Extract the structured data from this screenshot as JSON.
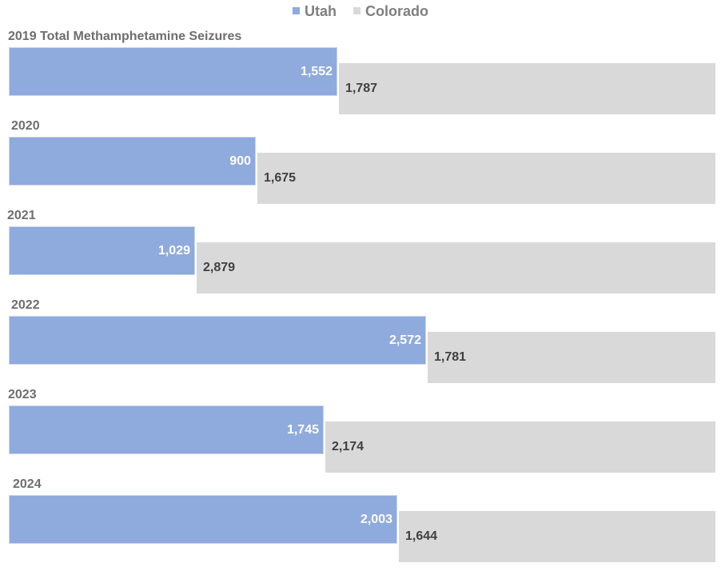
{
  "chart_data": {
    "type": "bar",
    "orientation": "horizontal",
    "stacking": "percent",
    "categories": [
      "2019 Total Methamphetamine Seizures",
      "2020",
      "2021",
      "2022",
      "2023",
      "2024"
    ],
    "series": [
      {
        "name": "Utah",
        "color": "#8faadc",
        "values": [
          1552,
          900,
          1029,
          2572,
          1745,
          2003
        ],
        "labels": [
          "1,552",
          "900",
          "1,029",
          "2,572",
          "1,745",
          "2,003"
        ]
      },
      {
        "name": "Colorado",
        "color": "#d9d9d9",
        "values": [
          1787,
          1675,
          2879,
          1781,
          2174,
          1644
        ],
        "labels": [
          "1,787",
          "1,675",
          "2,879",
          "1,781",
          "2,174",
          "1,644"
        ]
      }
    ],
    "legend": "top",
    "grid": false
  }
}
